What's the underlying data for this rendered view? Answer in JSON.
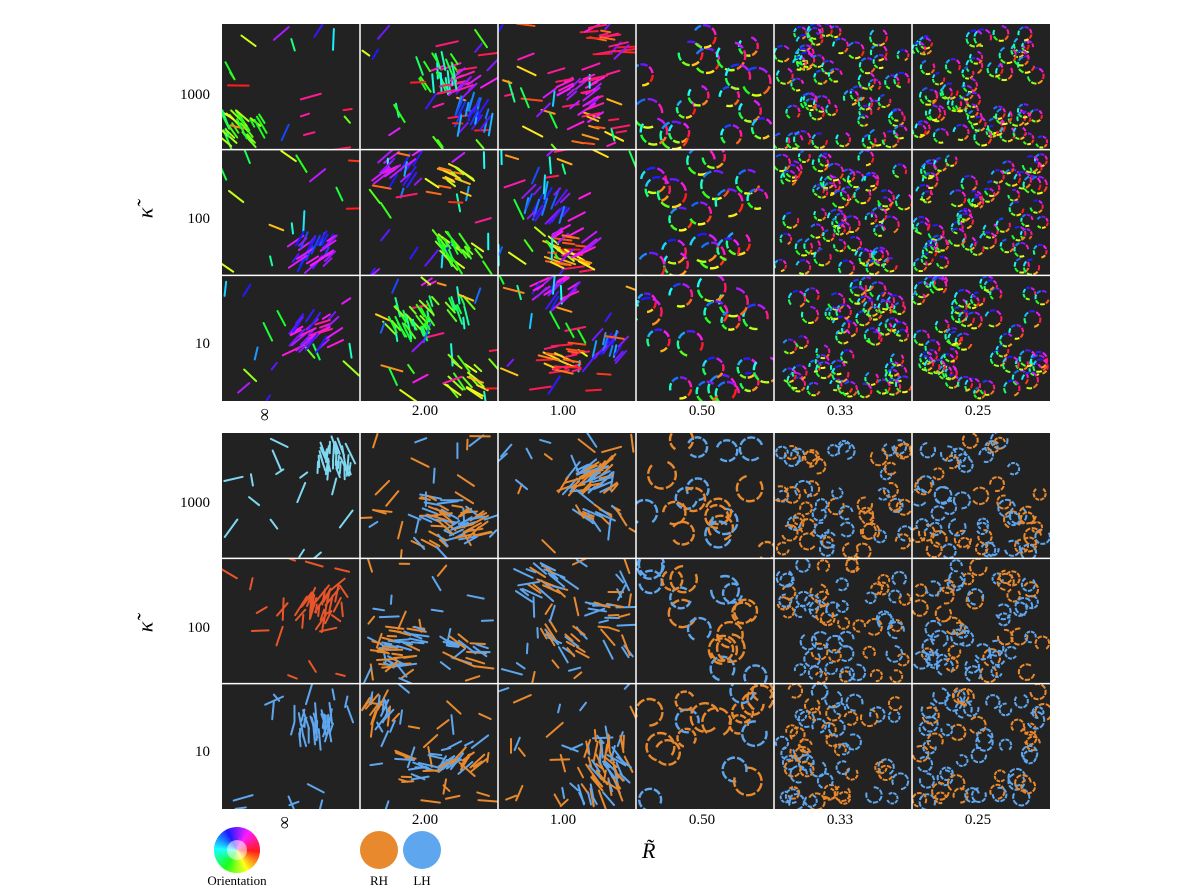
{
  "figure": {
    "x_axis_title": "R̃",
    "y_axis_title": "κ̃",
    "x_ticks": [
      "∞",
      "2.00",
      "1.00",
      "0.50",
      "0.33",
      "0.25"
    ],
    "y_ticks": [
      "1000",
      "100",
      "10"
    ],
    "top_panel": {
      "coloring": "orientation"
    },
    "bottom_panel": {
      "coloring": "chirality"
    }
  },
  "legend": {
    "orientation_label": "Orientation",
    "rh_label": "RH",
    "lh_label": "LH",
    "rh_color": "#e8892e",
    "lh_color": "#5ea6ee",
    "background_color": "#222222"
  }
}
